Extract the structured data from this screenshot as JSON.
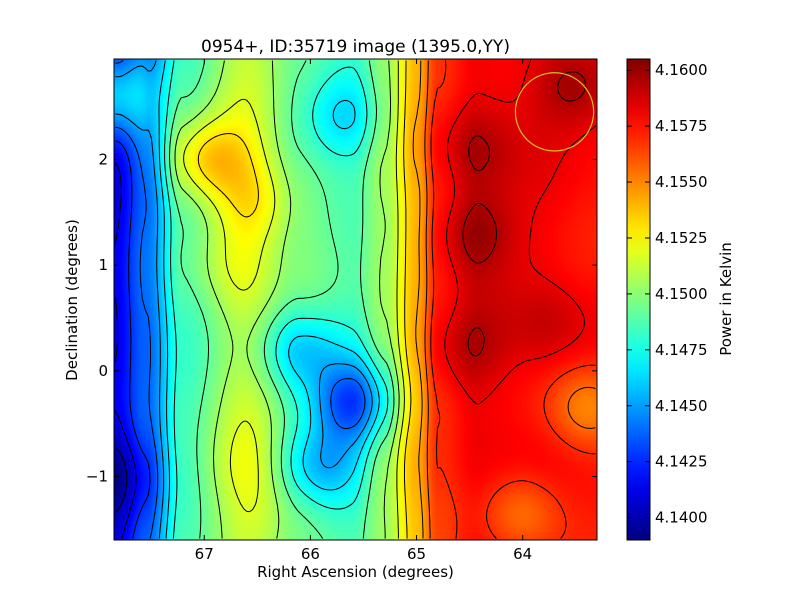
{
  "chart_data": {
    "type": "heatmap",
    "title": "0954+, ID:35719 image (1395.0,YY)",
    "xlabel": "Right Ascension (degrees)",
    "ylabel": "Declination (degrees)",
    "xlim": [
      67.85,
      63.3
    ],
    "ylim": [
      -1.6,
      2.95
    ],
    "x_ticks": [
      67,
      66,
      65,
      64
    ],
    "y_ticks": [
      -1,
      0,
      1,
      2
    ],
    "x_tick_labels": [
      "67",
      "66",
      "65",
      "64"
    ],
    "y_tick_labels": [
      "−1",
      "0",
      "1",
      "2"
    ],
    "colorbar": {
      "label": "Power in Kelvin",
      "vmin": 4.139,
      "vmax": 4.1605,
      "ticks": [
        4.14,
        4.1425,
        4.145,
        4.1475,
        4.15,
        4.1525,
        4.155,
        4.1575,
        4.16
      ],
      "tick_labels": [
        "4.1400",
        "4.1425",
        "4.1450",
        "4.1475",
        "4.1500",
        "4.1525",
        "4.1550",
        "4.1575",
        "4.1600"
      ],
      "colormap": "jet"
    },
    "field": {
      "description_units": "Kelvin",
      "ra_profile": [
        [
          67.85,
          4.1412
        ],
        [
          67.55,
          4.1438
        ],
        [
          67.2,
          4.1485
        ],
        [
          66.6,
          4.1512
        ],
        [
          66.1,
          4.1495
        ],
        [
          65.6,
          4.1487
        ],
        [
          65.3,
          4.1505
        ],
        [
          65.0,
          4.154
        ],
        [
          64.8,
          4.1568
        ],
        [
          64.4,
          4.1582
        ],
        [
          63.9,
          4.158
        ],
        [
          63.3,
          4.1575
        ]
      ],
      "features": [
        {
          "ra": 64.5,
          "dec": 1.3,
          "value": 4.16,
          "kind": "peak"
        },
        {
          "ra": 64.5,
          "dec": 2.1,
          "value": 4.1595,
          "kind": "peak"
        },
        {
          "ra": 64.55,
          "dec": 0.2,
          "value": 4.1592,
          "kind": "peak"
        },
        {
          "ra": 63.75,
          "dec": 0.45,
          "value": 4.159,
          "kind": "peak"
        },
        {
          "ra": 63.5,
          "dec": 2.7,
          "value": 4.1597,
          "kind": "peak"
        },
        {
          "ra": 63.4,
          "dec": -0.35,
          "value": 4.155,
          "kind": "valley"
        },
        {
          "ra": 64.0,
          "dec": -1.35,
          "value": 4.1555,
          "kind": "valley"
        },
        {
          "ra": 65.6,
          "dec": -0.3,
          "value": 4.1432,
          "kind": "valley"
        },
        {
          "ra": 65.9,
          "dec": -0.9,
          "value": 4.1455,
          "kind": "valley"
        },
        {
          "ra": 66.1,
          "dec": 0.2,
          "value": 4.1462,
          "kind": "valley"
        },
        {
          "ra": 65.7,
          "dec": 2.4,
          "value": 4.1462,
          "kind": "valley"
        },
        {
          "ra": 66.5,
          "dec": 1.6,
          "value": 4.153,
          "kind": "peak"
        },
        {
          "ra": 67.0,
          "dec": 2.0,
          "value": 4.1532,
          "kind": "peak"
        },
        {
          "ra": 66.8,
          "dec": 1.0,
          "value": 4.1515,
          "kind": "peak"
        },
        {
          "ra": 66.6,
          "dec": -0.9,
          "value": 4.152,
          "kind": "peak"
        },
        {
          "ra": 66.3,
          "dec": -1.3,
          "value": 4.151,
          "kind": "peak"
        },
        {
          "ra": 67.9,
          "dec": 2.6,
          "value": 4.146,
          "kind": "peak"
        },
        {
          "ra": 67.8,
          "dec": -1.0,
          "value": 4.1395,
          "kind": "valley"
        }
      ]
    },
    "contour_levels": [
      4.14,
      4.1413,
      4.1426,
      4.1439,
      4.1452,
      4.1465,
      4.1478,
      4.1491,
      4.1504,
      4.1517,
      4.153,
      4.1543,
      4.1556,
      4.1569,
      4.1582,
      4.1595
    ],
    "circle_marker": {
      "ra": 63.7,
      "dec": 2.45,
      "radius_deg": 0.37,
      "color": "#d4c02a"
    }
  }
}
